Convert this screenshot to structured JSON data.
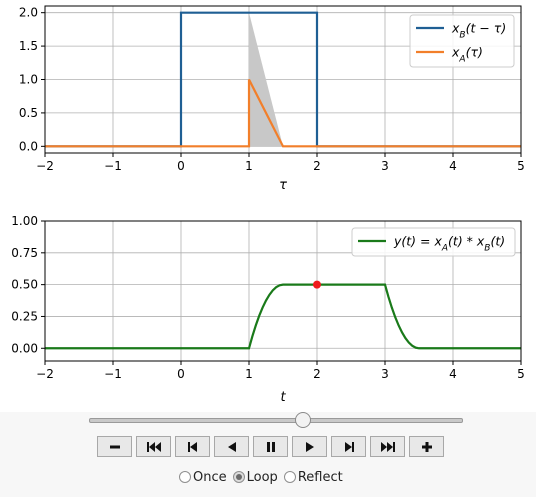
{
  "chart_data": [
    {
      "type": "line",
      "xlabel": "τ",
      "xlim": [
        -2,
        5
      ],
      "ylim": [
        -0.1,
        2.1
      ],
      "xticks": [
        -2,
        -1,
        0,
        1,
        2,
        3,
        4,
        5
      ],
      "xtick_labels": [
        "−2",
        "−1",
        "0",
        "1",
        "2",
        "3",
        "4",
        "5"
      ],
      "yticks": [
        0.0,
        0.5,
        1.0,
        1.5,
        2.0
      ],
      "ytick_labels": [
        "0.0",
        "0.5",
        "1.0",
        "1.5",
        "2.0"
      ],
      "grid": true,
      "legend_position": "top-right",
      "series": [
        {
          "name": "x_B(t−τ)",
          "legend_main": "x",
          "legend_sub": "B",
          "legend_rest": "(t − τ)",
          "color": "#1f5f94",
          "x": [
            -2,
            0,
            0,
            2,
            2,
            5
          ],
          "y": [
            0,
            0,
            2,
            2,
            0,
            0
          ]
        },
        {
          "name": "x_A(τ)",
          "legend_main": "x",
          "legend_sub": "A",
          "legend_rest": "(τ)",
          "color": "#f27f2a",
          "x": [
            -2,
            1,
            1,
            1.5,
            5
          ],
          "y": [
            0,
            0,
            1,
            0,
            0
          ]
        }
      ],
      "shaded_region": {
        "x": [
          1,
          1,
          1.5
        ],
        "y": [
          0,
          2,
          0
        ],
        "color": "#c8c8c8"
      }
    },
    {
      "type": "line",
      "xlabel": "t",
      "xlim": [
        -2,
        5
      ],
      "ylim": [
        -0.1,
        1.0
      ],
      "xticks": [
        -2,
        -1,
        0,
        1,
        2,
        3,
        4,
        5
      ],
      "xtick_labels": [
        "−2",
        "−1",
        "0",
        "1",
        "2",
        "3",
        "4",
        "5"
      ],
      "yticks": [
        0.0,
        0.25,
        0.5,
        0.75,
        1.0
      ],
      "ytick_labels": [
        "0.00",
        "0.25",
        "0.50",
        "0.75",
        "1.00"
      ],
      "grid": true,
      "legend_position": "top-right",
      "series": [
        {
          "name": "y(t) = x_A(t) * x_B(t)",
          "legend_text": "y(t) = x",
          "legend_parts": [
            "A",
            "(t) * x",
            "B",
            "(t)"
          ],
          "color": "#1a7a1a",
          "x": [
            -2,
            1,
            1.05,
            1.1,
            1.15,
            1.2,
            1.25,
            1.3,
            1.35,
            1.4,
            1.45,
            1.5,
            3,
            3.05,
            3.1,
            3.15,
            3.2,
            3.25,
            3.3,
            3.35,
            3.4,
            3.45,
            3.5,
            5
          ],
          "y": [
            0,
            0,
            0.095,
            0.18,
            0.255,
            0.32,
            0.375,
            0.42,
            0.455,
            0.48,
            0.495,
            0.5,
            0.5,
            0.405,
            0.32,
            0.245,
            0.18,
            0.125,
            0.08,
            0.045,
            0.02,
            0.005,
            0,
            0
          ]
        }
      ],
      "marker": {
        "x": 2,
        "y": 0.5,
        "color": "#ee1c1c"
      }
    }
  ],
  "controls": {
    "slider": {
      "min": -2,
      "max": 5,
      "value": 2
    },
    "buttons": [
      {
        "name": "decrease-speed-button",
        "icon": "minus-icon"
      },
      {
        "name": "first-frame-button",
        "icon": "skip-to-start-icon"
      },
      {
        "name": "step-back-button",
        "icon": "step-back-icon"
      },
      {
        "name": "play-reverse-button",
        "icon": "play-reverse-icon"
      },
      {
        "name": "pause-button",
        "icon": "pause-icon"
      },
      {
        "name": "play-button",
        "icon": "play-icon"
      },
      {
        "name": "step-forward-button",
        "icon": "step-forward-icon"
      },
      {
        "name": "last-frame-button",
        "icon": "skip-to-end-icon"
      },
      {
        "name": "increase-speed-button",
        "icon": "plus-icon"
      }
    ],
    "modes": [
      {
        "label": "Once",
        "checked": false
      },
      {
        "label": "Loop",
        "checked": true
      },
      {
        "label": "Reflect",
        "checked": false
      }
    ]
  }
}
